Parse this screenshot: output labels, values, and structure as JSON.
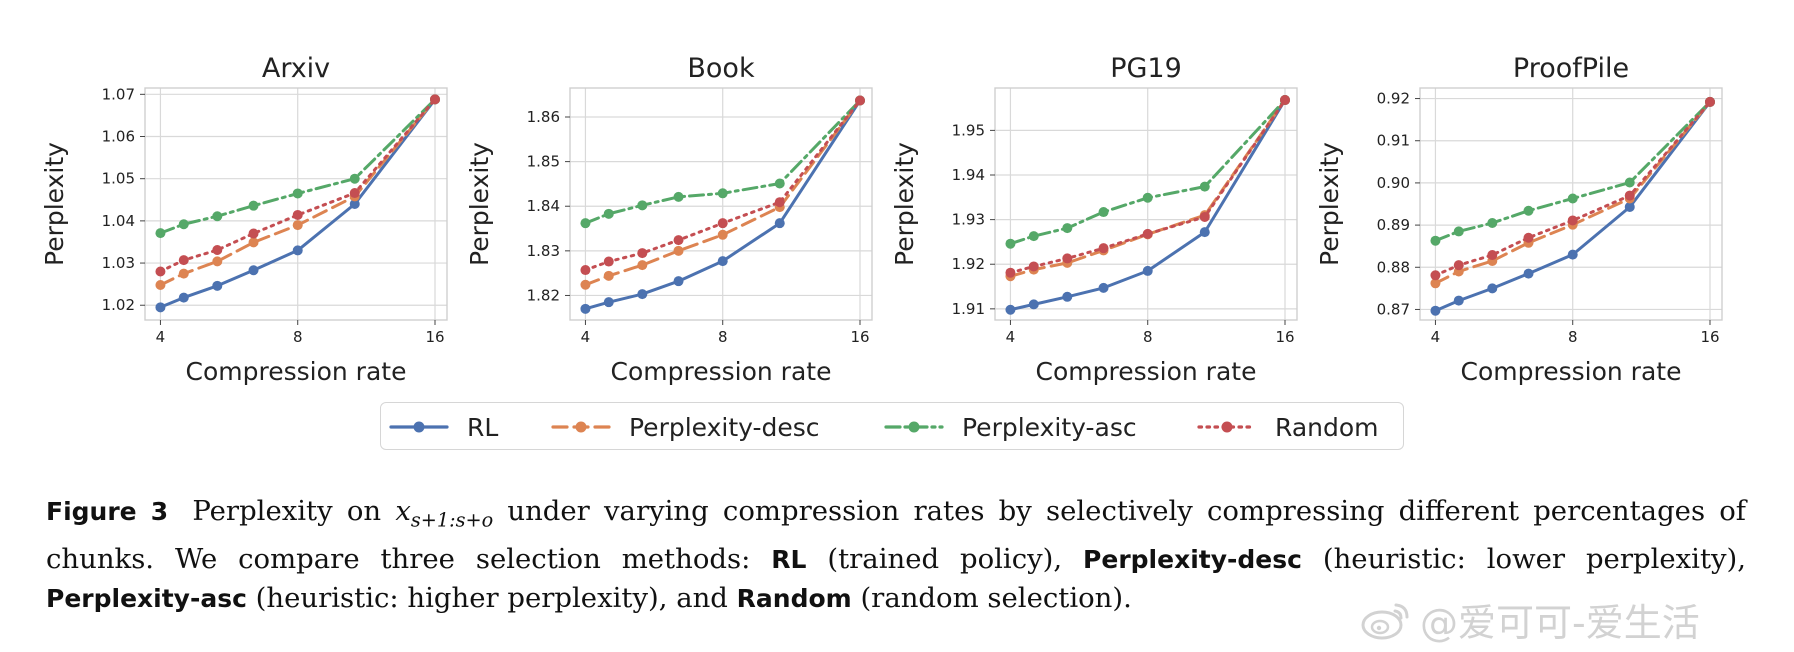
{
  "chart_data": [
    {
      "type": "line",
      "title": "Arxiv",
      "xlabel": "Compression rate",
      "ylabel": "Perplexity",
      "xscale": "log2",
      "xticks": [
        4,
        8,
        16
      ],
      "xlim": [
        3.7,
        17.0
      ],
      "yticks": [
        1.02,
        1.03,
        1.04,
        1.05,
        1.06,
        1.07
      ],
      "ylim": [
        1.0165,
        1.0715
      ],
      "grid": true,
      "x": [
        4,
        4.5,
        5.33,
        6.4,
        8,
        10.67,
        16
      ],
      "series": [
        {
          "name": "RL",
          "values": [
            1.0195,
            1.0218,
            1.0246,
            1.0283,
            1.033,
            1.044,
            1.0688
          ]
        },
        {
          "name": "Perplexity-desc",
          "values": [
            1.0248,
            1.0275,
            1.0304,
            1.0349,
            1.039,
            1.0458,
            1.0688
          ]
        },
        {
          "name": "Perplexity-asc",
          "values": [
            1.0371,
            1.0392,
            1.0411,
            1.0436,
            1.0465,
            1.05,
            1.0688
          ]
        },
        {
          "name": "Random",
          "values": [
            1.028,
            1.0307,
            1.0331,
            1.037,
            1.0414,
            1.0466,
            1.0688
          ]
        }
      ]
    },
    {
      "type": "line",
      "title": "Book",
      "xlabel": "Compression rate",
      "ylabel": "Perplexity",
      "xscale": "log2",
      "xticks": [
        4,
        8,
        16
      ],
      "xlim": [
        3.7,
        17.0
      ],
      "yticks": [
        1.82,
        1.83,
        1.84,
        1.85,
        1.86
      ],
      "ylim": [
        1.8145,
        1.8665
      ],
      "grid": true,
      "x": [
        4,
        4.5,
        5.33,
        6.4,
        8,
        10.67,
        16
      ],
      "series": [
        {
          "name": "RL",
          "values": [
            1.817,
            1.8185,
            1.8203,
            1.8232,
            1.8277,
            1.8362,
            1.8637
          ]
        },
        {
          "name": "Perplexity-desc",
          "values": [
            1.8224,
            1.8244,
            1.8268,
            1.83,
            1.8336,
            1.8398,
            1.8637
          ]
        },
        {
          "name": "Perplexity-asc",
          "values": [
            1.8362,
            1.8383,
            1.8402,
            1.8421,
            1.8429,
            1.8451,
            1.8637
          ]
        },
        {
          "name": "Random",
          "values": [
            1.8257,
            1.8276,
            1.8295,
            1.8324,
            1.8362,
            1.8409,
            1.8637
          ]
        }
      ]
    },
    {
      "type": "line",
      "title": "PG19",
      "xlabel": "Compression rate",
      "ylabel": "Perplexity",
      "xscale": "log2",
      "xticks": [
        4,
        8,
        16
      ],
      "xlim": [
        3.7,
        17.0
      ],
      "yticks": [
        1.91,
        1.92,
        1.93,
        1.94,
        1.95
      ],
      "ylim": [
        1.9075,
        1.9595
      ],
      "grid": true,
      "x": [
        4,
        4.5,
        5.33,
        6.4,
        8,
        10.67,
        16
      ],
      "series": [
        {
          "name": "RL",
          "values": [
            1.9098,
            1.911,
            1.9127,
            1.9147,
            1.9185,
            1.9272,
            1.9568
          ]
        },
        {
          "name": "Perplexity-desc",
          "values": [
            1.9173,
            1.9188,
            1.9203,
            1.9231,
            1.9267,
            1.931,
            1.9568
          ]
        },
        {
          "name": "Perplexity-asc",
          "values": [
            1.9246,
            1.9263,
            1.9281,
            1.9317,
            1.9349,
            1.9374,
            1.9568
          ]
        },
        {
          "name": "Random",
          "values": [
            1.9181,
            1.9195,
            1.9213,
            1.9236,
            1.9268,
            1.9306,
            1.9568
          ]
        }
      ]
    },
    {
      "type": "line",
      "title": "ProofPile",
      "xlabel": "Compression rate",
      "ylabel": "Perplexity",
      "xscale": "log2",
      "xticks": [
        4,
        8,
        16
      ],
      "xlim": [
        3.7,
        17.0
      ],
      "yticks": [
        0.87,
        0.88,
        0.89,
        0.9,
        0.91,
        0.92
      ],
      "ylim": [
        0.8675,
        0.9225
      ],
      "grid": true,
      "x": [
        4,
        4.5,
        5.33,
        6.4,
        8,
        10.67,
        16
      ],
      "series": [
        {
          "name": "RL",
          "values": [
            0.8697,
            0.8721,
            0.875,
            0.8785,
            0.883,
            0.8943,
            0.9192
          ]
        },
        {
          "name": "Perplexity-desc",
          "values": [
            0.8762,
            0.879,
            0.8815,
            0.8858,
            0.8901,
            0.8963,
            0.9192
          ]
        },
        {
          "name": "Perplexity-asc",
          "values": [
            0.8863,
            0.8885,
            0.8905,
            0.8934,
            0.8963,
            0.9001,
            0.9192
          ]
        },
        {
          "name": "Random",
          "values": [
            0.8781,
            0.8805,
            0.8829,
            0.887,
            0.8911,
            0.897,
            0.9192
          ]
        }
      ]
    }
  ],
  "series_style": [
    {
      "name": "RL",
      "color": "#4c72b0",
      "dash": "solid"
    },
    {
      "name": "Perplexity-desc",
      "color": "#dd8452",
      "dash": "dashed"
    },
    {
      "name": "Perplexity-asc",
      "color": "#55a868",
      "dash": "dashdot"
    },
    {
      "name": "Random",
      "color": "#c44e52",
      "dash": "dotted"
    }
  ],
  "legend": {
    "placement": "bottom-center",
    "entries": [
      "RL",
      "Perplexity-desc",
      "Perplexity-asc",
      "Random"
    ]
  },
  "caption": {
    "label": "Figure 3",
    "text_1": "Perplexity on",
    "math_base": "x",
    "math_sub": "s+1:s+o",
    "text_2": "under varying compression rates by selectively compressing different percentages of chunks. We compare three selection methods:",
    "m1": "RL",
    "d1": "(trained policy),",
    "m2": "Perplexity-desc",
    "d2": "(heuristic: lower perplexity),",
    "m3": "Perplexity-asc",
    "d3": "(heuristic: higher perplexity), and",
    "m4": "Random",
    "d4": "(random selection)."
  },
  "watermark": {
    "text": "@爱可可-爱生活",
    "icon": "weibo-logo-icon"
  }
}
